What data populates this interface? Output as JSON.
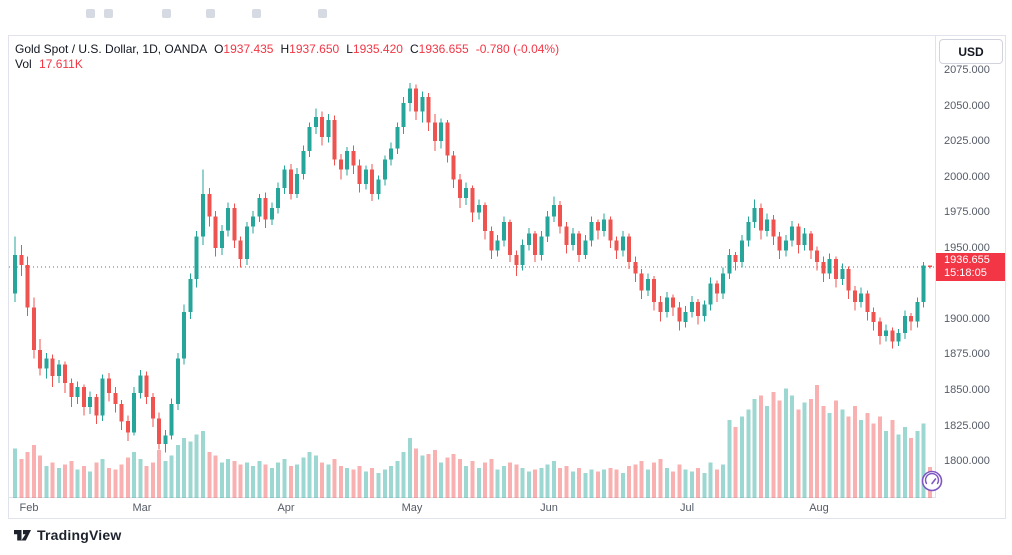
{
  "colors": {
    "up": "#26a69a",
    "down": "#ef5350",
    "volup": "rgba(38,166,154,0.45)",
    "voldown": "rgba(239,83,80,0.45)",
    "accent": "#f23645",
    "border": "#e0e3eb",
    "text": "#131722",
    "muted": "#555b66",
    "purple": "#7e57c2"
  },
  "legend": {
    "title": "Gold Spot / U.S. Dollar, 1D, OANDA",
    "open_label": "O",
    "open": "1937.435",
    "high_label": "H",
    "high": "1937.650",
    "low_label": "L",
    "low": "1935.420",
    "close_label": "C",
    "close": "1936.655",
    "change": "-0.780 (-0.04%)",
    "volume_label": "Vol",
    "volume": "17.611K"
  },
  "price_axis": {
    "currency": "USD",
    "badge": {
      "price": "1936.655",
      "countdown": "15:18:05"
    }
  },
  "footer": {
    "brand": "TradingView"
  },
  "chart_data": {
    "type": "candlestick",
    "title": "Gold Spot / U.S. Dollar, 1D, OANDA",
    "interval": "1D",
    "exchange": "OANDA",
    "last_price": 1936.655,
    "ylim": [
      1774,
      2099
    ],
    "y_ticks": [
      "2075.000",
      "2050.000",
      "2025.000",
      "2000.000",
      "1975.000",
      "1950.000",
      "1900.000",
      "1875.000",
      "1850.000",
      "1825.000",
      "1800.000"
    ],
    "months": [
      {
        "label": "Feb",
        "index": 1
      },
      {
        "label": "Mar",
        "index": 19
      },
      {
        "label": "Apr",
        "index": 42
      },
      {
        "label": "May",
        "index": 62
      },
      {
        "label": "Jun",
        "index": 84
      },
      {
        "label": "Jul",
        "index": 106
      },
      {
        "label": "Aug",
        "index": 127
      }
    ],
    "volume_unit": "K",
    "volume_scale_max": 65,
    "candles": [
      [
        1918,
        1958,
        1912,
        1945,
        28
      ],
      [
        1945,
        1952,
        1930,
        1938,
        22
      ],
      [
        1938,
        1944,
        1902,
        1908,
        26
      ],
      [
        1908,
        1915,
        1872,
        1878,
        30
      ],
      [
        1878,
        1886,
        1860,
        1865,
        24
      ],
      [
        1865,
        1876,
        1858,
        1872,
        18
      ],
      [
        1872,
        1875,
        1852,
        1860,
        20
      ],
      [
        1860,
        1871,
        1855,
        1868,
        17
      ],
      [
        1868,
        1870,
        1848,
        1855,
        19
      ],
      [
        1855,
        1858,
        1838,
        1845,
        21
      ],
      [
        1845,
        1856,
        1840,
        1852,
        16
      ],
      [
        1852,
        1854,
        1832,
        1838,
        18
      ],
      [
        1838,
        1849,
        1833,
        1845,
        15
      ],
      [
        1845,
        1847,
        1826,
        1832,
        20
      ],
      [
        1832,
        1861,
        1828,
        1858,
        22
      ],
      [
        1858,
        1862,
        1842,
        1848,
        17
      ],
      [
        1848,
        1852,
        1834,
        1840,
        16
      ],
      [
        1840,
        1843,
        1822,
        1828,
        19
      ],
      [
        1828,
        1832,
        1814,
        1820,
        23
      ],
      [
        1820,
        1852,
        1818,
        1848,
        26
      ],
      [
        1848,
        1864,
        1844,
        1860,
        22
      ],
      [
        1860,
        1863,
        1840,
        1845,
        18
      ],
      [
        1845,
        1848,
        1824,
        1830,
        20
      ],
      [
        1830,
        1834,
        1808,
        1812,
        27
      ],
      [
        1812,
        1822,
        1806,
        1818,
        21
      ],
      [
        1818,
        1844,
        1815,
        1840,
        24
      ],
      [
        1840,
        1876,
        1836,
        1872,
        30
      ],
      [
        1872,
        1910,
        1868,
        1905,
        34
      ],
      [
        1905,
        1932,
        1900,
        1928,
        32
      ],
      [
        1928,
        1962,
        1922,
        1958,
        36
      ],
      [
        1958,
        2005,
        1952,
        1988,
        38
      ],
      [
        1988,
        1992,
        1965,
        1972,
        26
      ],
      [
        1972,
        1976,
        1944,
        1950,
        24
      ],
      [
        1950,
        1966,
        1945,
        1962,
        20
      ],
      [
        1962,
        1982,
        1958,
        1978,
        22
      ],
      [
        1978,
        1981,
        1950,
        1955,
        21
      ],
      [
        1955,
        1958,
        1936,
        1942,
        19
      ],
      [
        1942,
        1968,
        1938,
        1965,
        20
      ],
      [
        1965,
        1976,
        1960,
        1972,
        18
      ],
      [
        1972,
        1988,
        1968,
        1985,
        21
      ],
      [
        1985,
        1989,
        1964,
        1970,
        19
      ],
      [
        1970,
        1982,
        1966,
        1978,
        17
      ],
      [
        1978,
        1996,
        1974,
        1992,
        20
      ],
      [
        1992,
        2008,
        1988,
        2005,
        22
      ],
      [
        2005,
        2009,
        1984,
        1988,
        18
      ],
      [
        1988,
        2006,
        1985,
        2002,
        19
      ],
      [
        2002,
        2022,
        1998,
        2018,
        23
      ],
      [
        2018,
        2038,
        2014,
        2035,
        26
      ],
      [
        2035,
        2048,
        2030,
        2042,
        24
      ],
      [
        2042,
        2046,
        2022,
        2028,
        20
      ],
      [
        2028,
        2044,
        2024,
        2040,
        19
      ],
      [
        2040,
        2043,
        2008,
        2012,
        22
      ],
      [
        2012,
        2016,
        1998,
        2005,
        18
      ],
      [
        2005,
        2021,
        2001,
        2018,
        17
      ],
      [
        2018,
        2022,
        2002,
        2008,
        16
      ],
      [
        2008,
        2012,
        1989,
        1995,
        18
      ],
      [
        1995,
        2008,
        1991,
        2005,
        15
      ],
      [
        2005,
        2009,
        1983,
        1988,
        17
      ],
      [
        1988,
        2001,
        1984,
        1998,
        14
      ],
      [
        1998,
        2015,
        1994,
        2012,
        16
      ],
      [
        2012,
        2024,
        2008,
        2020,
        18
      ],
      [
        2020,
        2038,
        2016,
        2035,
        21
      ],
      [
        2035,
        2056,
        2030,
        2052,
        26
      ],
      [
        2052,
        2066,
        2046,
        2062,
        34
      ],
      [
        2062,
        2065,
        2040,
        2046,
        28
      ],
      [
        2046,
        2060,
        2038,
        2056,
        24
      ],
      [
        2056,
        2059,
        2032,
        2038,
        25
      ],
      [
        2038,
        2044,
        2018,
        2025,
        27
      ],
      [
        2025,
        2041,
        2020,
        2038,
        20
      ],
      [
        2038,
        2040,
        2010,
        2015,
        23
      ],
      [
        2015,
        2018,
        1992,
        1998,
        25
      ],
      [
        1998,
        2002,
        1978,
        1985,
        22
      ],
      [
        1985,
        1996,
        1980,
        1992,
        18
      ],
      [
        1992,
        1994,
        1968,
        1975,
        21
      ],
      [
        1975,
        1984,
        1970,
        1980,
        17
      ],
      [
        1980,
        1982,
        1956,
        1962,
        20
      ],
      [
        1962,
        1965,
        1942,
        1948,
        22
      ],
      [
        1948,
        1959,
        1944,
        1955,
        16
      ],
      [
        1955,
        1972,
        1951,
        1968,
        18
      ],
      [
        1968,
        1970,
        1940,
        1945,
        20
      ],
      [
        1945,
        1948,
        1930,
        1938,
        19
      ],
      [
        1938,
        1956,
        1934,
        1952,
        17
      ],
      [
        1952,
        1964,
        1948,
        1960,
        15
      ],
      [
        1960,
        1962,
        1940,
        1945,
        16
      ],
      [
        1945,
        1962,
        1941,
        1958,
        17
      ],
      [
        1958,
        1976,
        1954,
        1972,
        19
      ],
      [
        1972,
        1986,
        1968,
        1980,
        21
      ],
      [
        1980,
        1983,
        1960,
        1965,
        17
      ],
      [
        1965,
        1968,
        1946,
        1952,
        18
      ],
      [
        1952,
        1964,
        1948,
        1960,
        15
      ],
      [
        1960,
        1962,
        1940,
        1945,
        17
      ],
      [
        1945,
        1959,
        1942,
        1955,
        14
      ],
      [
        1955,
        1972,
        1951,
        1968,
        16
      ],
      [
        1968,
        1970,
        1956,
        1962,
        15
      ],
      [
        1962,
        1974,
        1958,
        1970,
        16
      ],
      [
        1970,
        1972,
        1950,
        1955,
        17
      ],
      [
        1955,
        1958,
        1942,
        1948,
        16
      ],
      [
        1948,
        1962,
        1944,
        1958,
        14
      ],
      [
        1958,
        1960,
        1935,
        1940,
        18
      ],
      [
        1940,
        1944,
        1926,
        1932,
        19
      ],
      [
        1932,
        1935,
        1914,
        1920,
        21
      ],
      [
        1920,
        1932,
        1916,
        1928,
        16
      ],
      [
        1928,
        1930,
        1906,
        1912,
        20
      ],
      [
        1912,
        1916,
        1898,
        1905,
        22
      ],
      [
        1905,
        1919,
        1901,
        1915,
        17
      ],
      [
        1915,
        1917,
        1902,
        1908,
        15
      ],
      [
        1908,
        1912,
        1892,
        1898,
        19
      ],
      [
        1898,
        1909,
        1894,
        1905,
        16
      ],
      [
        1905,
        1916,
        1901,
        1912,
        15
      ],
      [
        1912,
        1914,
        1896,
        1902,
        17
      ],
      [
        1902,
        1913,
        1898,
        1910,
        14
      ],
      [
        1910,
        1929,
        1906,
        1925,
        20
      ],
      [
        1925,
        1927,
        1912,
        1918,
        16
      ],
      [
        1918,
        1936,
        1914,
        1932,
        19
      ],
      [
        1932,
        1949,
        1928,
        1945,
        44
      ],
      [
        1945,
        1947,
        1934,
        1940,
        40
      ],
      [
        1940,
        1959,
        1936,
        1955,
        46
      ],
      [
        1955,
        1972,
        1951,
        1968,
        50
      ],
      [
        1968,
        1984,
        1964,
        1978,
        56
      ],
      [
        1978,
        1981,
        1956,
        1962,
        58
      ],
      [
        1962,
        1974,
        1958,
        1970,
        52
      ],
      [
        1970,
        1973,
        1952,
        1958,
        60
      ],
      [
        1958,
        1961,
        1942,
        1948,
        55
      ],
      [
        1948,
        1959,
        1944,
        1955,
        62
      ],
      [
        1955,
        1969,
        1951,
        1965,
        58
      ],
      [
        1965,
        1967,
        1946,
        1952,
        50
      ],
      [
        1952,
        1964,
        1948,
        1960,
        54
      ],
      [
        1960,
        1962,
        1942,
        1948,
        56
      ],
      [
        1948,
        1951,
        1934,
        1940,
        64
      ],
      [
        1940,
        1944,
        1926,
        1932,
        52
      ],
      [
        1932,
        1946,
        1928,
        1942,
        48
      ],
      [
        1942,
        1944,
        1922,
        1928,
        55
      ],
      [
        1928,
        1939,
        1924,
        1935,
        50
      ],
      [
        1935,
        1937,
        1914,
        1920,
        46
      ],
      [
        1920,
        1923,
        1906,
        1912,
        52
      ],
      [
        1912,
        1922,
        1908,
        1918,
        44
      ],
      [
        1918,
        1920,
        1899,
        1905,
        48
      ],
      [
        1905,
        1908,
        1892,
        1898,
        42
      ],
      [
        1898,
        1901,
        1882,
        1888,
        46
      ],
      [
        1888,
        1896,
        1884,
        1892,
        38
      ],
      [
        1892,
        1894,
        1879,
        1884,
        44
      ],
      [
        1884,
        1893,
        1881,
        1890,
        36
      ],
      [
        1890,
        1906,
        1886,
        1902,
        40
      ],
      [
        1902,
        1904,
        1892,
        1898,
        34
      ],
      [
        1898,
        1915,
        1894,
        1912,
        38
      ],
      [
        1912,
        1940,
        1908,
        1937.4,
        42
      ],
      [
        1937.435,
        1937.65,
        1935.42,
        1936.655,
        17.611
      ]
    ]
  }
}
